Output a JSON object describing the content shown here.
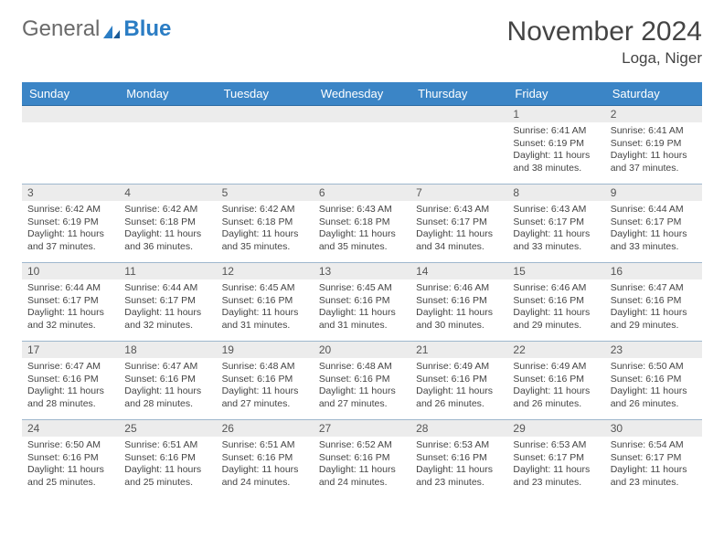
{
  "logo": {
    "text1": "General",
    "text2": "Blue"
  },
  "header": {
    "title": "November 2024",
    "location": "Loga, Niger"
  },
  "weekdays": [
    "Sunday",
    "Monday",
    "Tuesday",
    "Wednesday",
    "Thursday",
    "Friday",
    "Saturday"
  ],
  "colors": {
    "header_bg": "#3b85c6",
    "header_text": "#ffffff",
    "daynum_bg": "#ececec",
    "row_border": "#9eb7cd",
    "logo_gray": "#6a6a6a",
    "logo_blue": "#2b7dc4"
  },
  "rows": [
    [
      {
        "n": "",
        "sr": "",
        "ss": "",
        "dl": ""
      },
      {
        "n": "",
        "sr": "",
        "ss": "",
        "dl": ""
      },
      {
        "n": "",
        "sr": "",
        "ss": "",
        "dl": ""
      },
      {
        "n": "",
        "sr": "",
        "ss": "",
        "dl": ""
      },
      {
        "n": "",
        "sr": "",
        "ss": "",
        "dl": ""
      },
      {
        "n": "1",
        "sr": "Sunrise: 6:41 AM",
        "ss": "Sunset: 6:19 PM",
        "dl": "Daylight: 11 hours and 38 minutes."
      },
      {
        "n": "2",
        "sr": "Sunrise: 6:41 AM",
        "ss": "Sunset: 6:19 PM",
        "dl": "Daylight: 11 hours and 37 minutes."
      }
    ],
    [
      {
        "n": "3",
        "sr": "Sunrise: 6:42 AM",
        "ss": "Sunset: 6:19 PM",
        "dl": "Daylight: 11 hours and 37 minutes."
      },
      {
        "n": "4",
        "sr": "Sunrise: 6:42 AM",
        "ss": "Sunset: 6:18 PM",
        "dl": "Daylight: 11 hours and 36 minutes."
      },
      {
        "n": "5",
        "sr": "Sunrise: 6:42 AM",
        "ss": "Sunset: 6:18 PM",
        "dl": "Daylight: 11 hours and 35 minutes."
      },
      {
        "n": "6",
        "sr": "Sunrise: 6:43 AM",
        "ss": "Sunset: 6:18 PM",
        "dl": "Daylight: 11 hours and 35 minutes."
      },
      {
        "n": "7",
        "sr": "Sunrise: 6:43 AM",
        "ss": "Sunset: 6:17 PM",
        "dl": "Daylight: 11 hours and 34 minutes."
      },
      {
        "n": "8",
        "sr": "Sunrise: 6:43 AM",
        "ss": "Sunset: 6:17 PM",
        "dl": "Daylight: 11 hours and 33 minutes."
      },
      {
        "n": "9",
        "sr": "Sunrise: 6:44 AM",
        "ss": "Sunset: 6:17 PM",
        "dl": "Daylight: 11 hours and 33 minutes."
      }
    ],
    [
      {
        "n": "10",
        "sr": "Sunrise: 6:44 AM",
        "ss": "Sunset: 6:17 PM",
        "dl": "Daylight: 11 hours and 32 minutes."
      },
      {
        "n": "11",
        "sr": "Sunrise: 6:44 AM",
        "ss": "Sunset: 6:17 PM",
        "dl": "Daylight: 11 hours and 32 minutes."
      },
      {
        "n": "12",
        "sr": "Sunrise: 6:45 AM",
        "ss": "Sunset: 6:16 PM",
        "dl": "Daylight: 11 hours and 31 minutes."
      },
      {
        "n": "13",
        "sr": "Sunrise: 6:45 AM",
        "ss": "Sunset: 6:16 PM",
        "dl": "Daylight: 11 hours and 31 minutes."
      },
      {
        "n": "14",
        "sr": "Sunrise: 6:46 AM",
        "ss": "Sunset: 6:16 PM",
        "dl": "Daylight: 11 hours and 30 minutes."
      },
      {
        "n": "15",
        "sr": "Sunrise: 6:46 AM",
        "ss": "Sunset: 6:16 PM",
        "dl": "Daylight: 11 hours and 29 minutes."
      },
      {
        "n": "16",
        "sr": "Sunrise: 6:47 AM",
        "ss": "Sunset: 6:16 PM",
        "dl": "Daylight: 11 hours and 29 minutes."
      }
    ],
    [
      {
        "n": "17",
        "sr": "Sunrise: 6:47 AM",
        "ss": "Sunset: 6:16 PM",
        "dl": "Daylight: 11 hours and 28 minutes."
      },
      {
        "n": "18",
        "sr": "Sunrise: 6:47 AM",
        "ss": "Sunset: 6:16 PM",
        "dl": "Daylight: 11 hours and 28 minutes."
      },
      {
        "n": "19",
        "sr": "Sunrise: 6:48 AM",
        "ss": "Sunset: 6:16 PM",
        "dl": "Daylight: 11 hours and 27 minutes."
      },
      {
        "n": "20",
        "sr": "Sunrise: 6:48 AM",
        "ss": "Sunset: 6:16 PM",
        "dl": "Daylight: 11 hours and 27 minutes."
      },
      {
        "n": "21",
        "sr": "Sunrise: 6:49 AM",
        "ss": "Sunset: 6:16 PM",
        "dl": "Daylight: 11 hours and 26 minutes."
      },
      {
        "n": "22",
        "sr": "Sunrise: 6:49 AM",
        "ss": "Sunset: 6:16 PM",
        "dl": "Daylight: 11 hours and 26 minutes."
      },
      {
        "n": "23",
        "sr": "Sunrise: 6:50 AM",
        "ss": "Sunset: 6:16 PM",
        "dl": "Daylight: 11 hours and 26 minutes."
      }
    ],
    [
      {
        "n": "24",
        "sr": "Sunrise: 6:50 AM",
        "ss": "Sunset: 6:16 PM",
        "dl": "Daylight: 11 hours and 25 minutes."
      },
      {
        "n": "25",
        "sr": "Sunrise: 6:51 AM",
        "ss": "Sunset: 6:16 PM",
        "dl": "Daylight: 11 hours and 25 minutes."
      },
      {
        "n": "26",
        "sr": "Sunrise: 6:51 AM",
        "ss": "Sunset: 6:16 PM",
        "dl": "Daylight: 11 hours and 24 minutes."
      },
      {
        "n": "27",
        "sr": "Sunrise: 6:52 AM",
        "ss": "Sunset: 6:16 PM",
        "dl": "Daylight: 11 hours and 24 minutes."
      },
      {
        "n": "28",
        "sr": "Sunrise: 6:53 AM",
        "ss": "Sunset: 6:16 PM",
        "dl": "Daylight: 11 hours and 23 minutes."
      },
      {
        "n": "29",
        "sr": "Sunrise: 6:53 AM",
        "ss": "Sunset: 6:17 PM",
        "dl": "Daylight: 11 hours and 23 minutes."
      },
      {
        "n": "30",
        "sr": "Sunrise: 6:54 AM",
        "ss": "Sunset: 6:17 PM",
        "dl": "Daylight: 11 hours and 23 minutes."
      }
    ]
  ]
}
